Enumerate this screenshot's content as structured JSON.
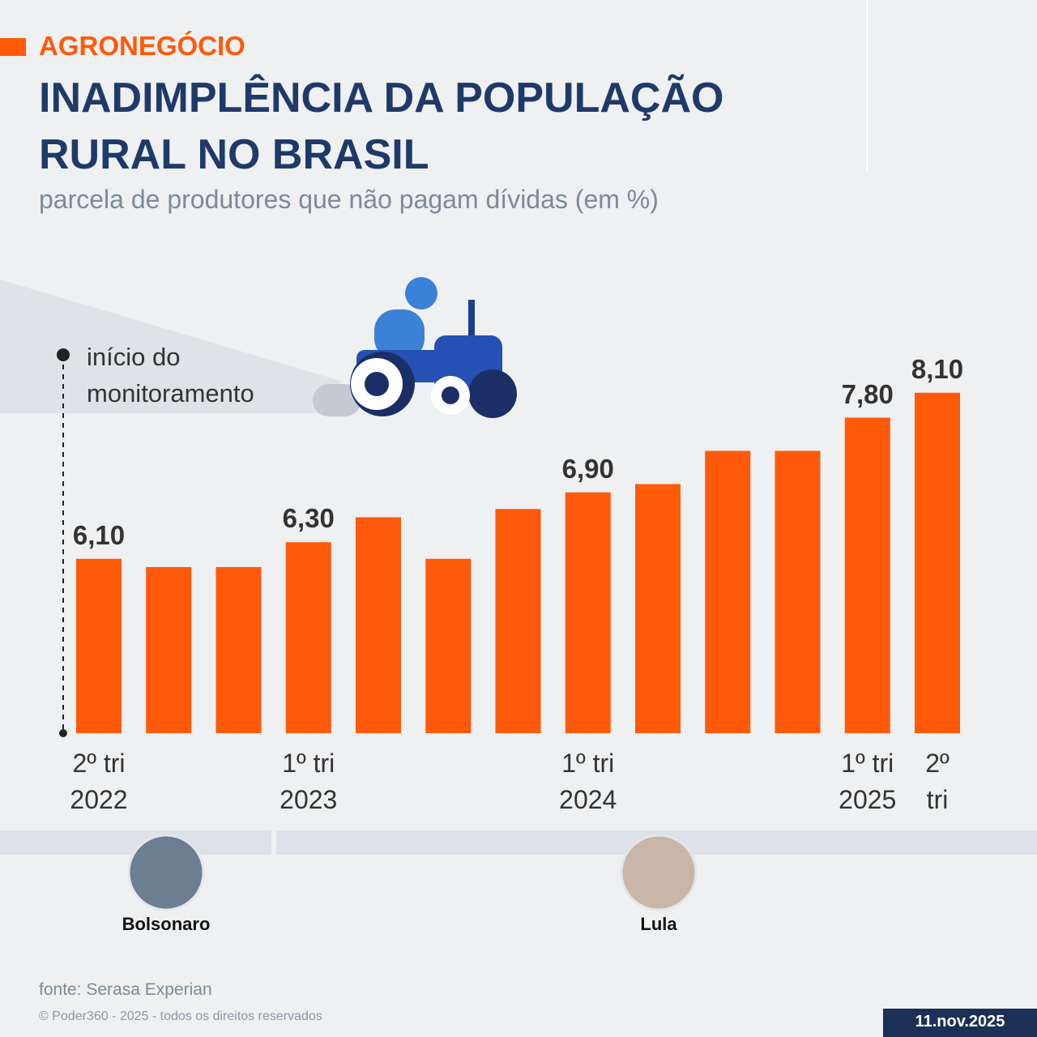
{
  "section": "AGRONEGÓCIO",
  "chart_data": {
    "type": "bar",
    "title": "INADIMPLÊNCIA DA POPULAÇÃO\nRURAL NO BRASIL",
    "subtitle": "parcela de produtores que não pagam dívidas (em %)",
    "categories": [
      "2º tri\n2022",
      null,
      null,
      "1º tri\n2023",
      null,
      null,
      null,
      "1º tri\n2024",
      null,
      null,
      null,
      "1º tri\n2025",
      "2º\ntri"
    ],
    "values": [
      6.1,
      6.0,
      6.0,
      6.3,
      6.6,
      6.1,
      6.7,
      6.9,
      7.0,
      7.4,
      7.4,
      7.8,
      8.1
    ],
    "value_labels": [
      "6,10",
      null,
      null,
      "6,30",
      null,
      null,
      null,
      "6,90",
      null,
      null,
      null,
      "7,80",
      "8,10"
    ],
    "color": "#ff5a0a",
    "ylim": [
      4,
      9
    ],
    "annotation": "início do\nmonitoramento",
    "periods": [
      "Bolsonaro",
      "Lula"
    ]
  },
  "footer": {
    "source": "fonte: Serasa Experian",
    "copyright": "© Poder360 - 2025 - todos os direitos reservados",
    "date": "11.nov.2025"
  }
}
